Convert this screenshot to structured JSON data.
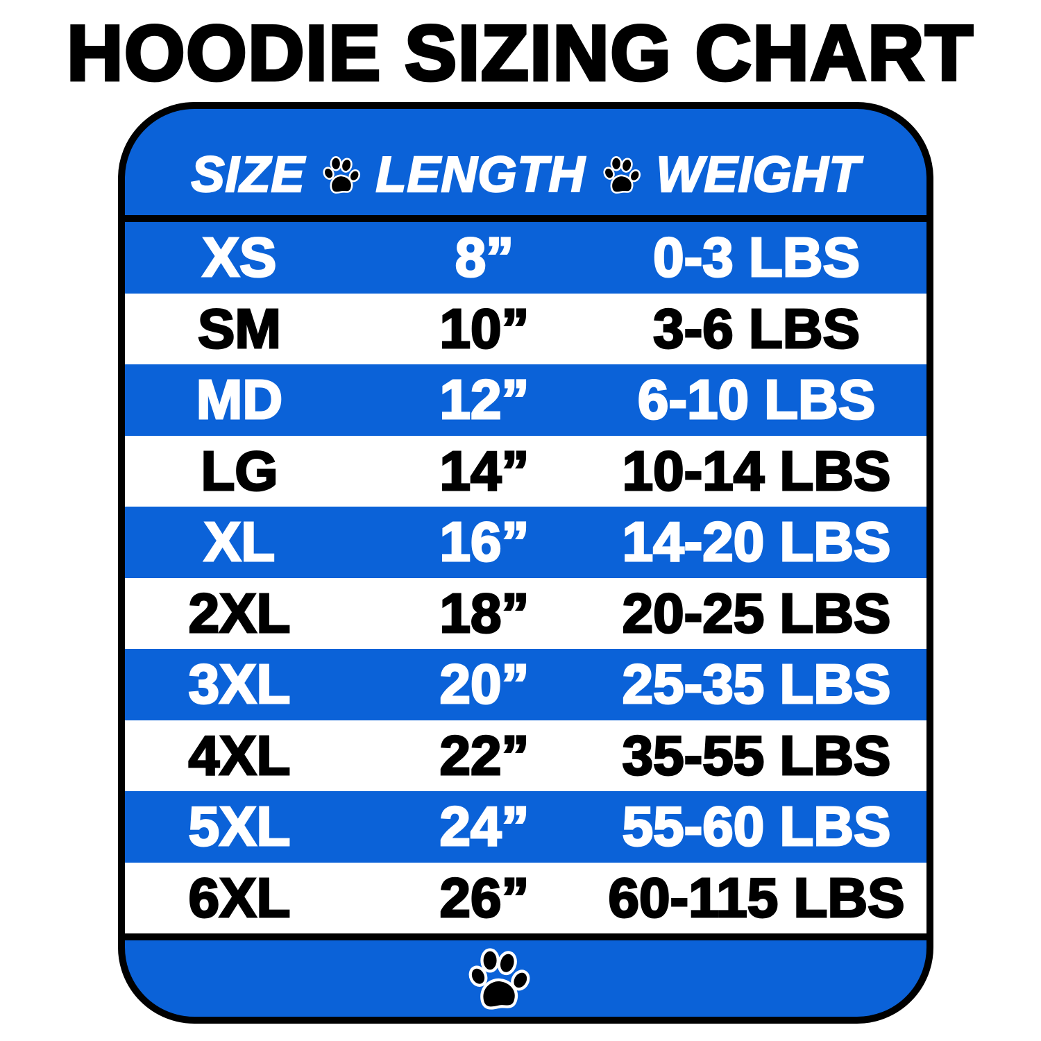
{
  "title": "HOODIE SIZING CHART",
  "colors": {
    "blue": "#0b62d8",
    "white": "#ffffff",
    "black": "#000000"
  },
  "header": {
    "columns": [
      "SIZE",
      "LENGTH",
      "WEIGHT"
    ],
    "separator_icon": "paw-print-icon"
  },
  "rows": [
    {
      "size": "XS",
      "length": "8”",
      "weight": "0-3 LBS"
    },
    {
      "size": "SM",
      "length": "10”",
      "weight": "3-6 LBS"
    },
    {
      "size": "MD",
      "length": "12”",
      "weight": "6-10 LBS"
    },
    {
      "size": "LG",
      "length": "14”",
      "weight": "10-14 LBS"
    },
    {
      "size": "XL",
      "length": "16”",
      "weight": "14-20 LBS"
    },
    {
      "size": "2XL",
      "length": "18”",
      "weight": "20-25 LBS"
    },
    {
      "size": "3XL",
      "length": "20”",
      "weight": "25-35 LBS"
    },
    {
      "size": "4XL",
      "length": "22”",
      "weight": "35-55 LBS"
    },
    {
      "size": "5XL",
      "length": "24”",
      "weight": "55-60 LBS"
    },
    {
      "size": "6XL",
      "length": "26”",
      "weight": "60-115 LBS"
    }
  ],
  "footer": {
    "icon": "paw-print-icon"
  }
}
